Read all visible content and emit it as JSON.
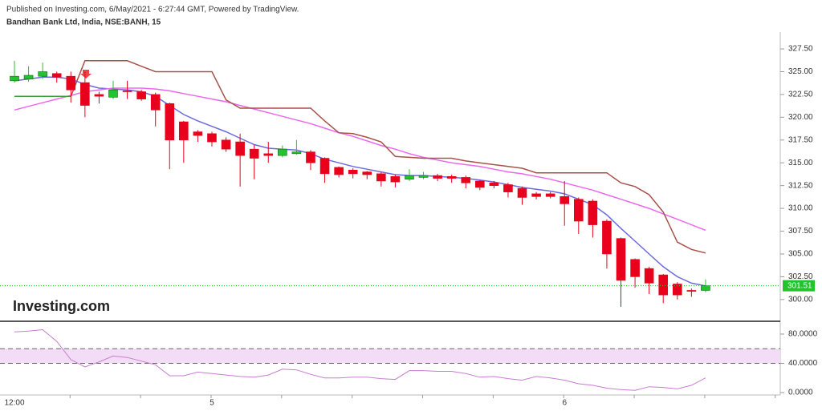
{
  "header": "Published on Investing.com, 6/May/2021 - 6:27:44 GMT, Powered by TradingView.",
  "logo": "Investing.com",
  "chart_data": [
    {
      "type": "candlestick",
      "title": "Bandhan Bank Ltd, India, NSE:BANH, 15",
      "categories": [
        "12:00",
        null,
        null,
        null,
        null,
        null,
        null,
        null,
        null,
        null,
        null,
        null,
        null,
        null,
        "5",
        null,
        null,
        null,
        null,
        null,
        null,
        null,
        null,
        null,
        null,
        null,
        null,
        null,
        null,
        null,
        null,
        null,
        null,
        null,
        null,
        null,
        null,
        null,
        null,
        "6",
        null,
        null,
        null,
        null,
        null,
        null,
        null,
        null,
        null,
        null
      ],
      "open": [
        324.0,
        324.2,
        324.5,
        324.8,
        324.5,
        323.8,
        322.5,
        322.2,
        322.9,
        322.8,
        322.5,
        321.5,
        319.5,
        318.4,
        318.2,
        317.5,
        317.3,
        316.5,
        316.0,
        315.8,
        316.0,
        316.2,
        315.5,
        314.5,
        314.2,
        314.0,
        313.8,
        313.5,
        313.2,
        313.4,
        313.6,
        313.5,
        313.4,
        313.0,
        312.8,
        312.6,
        312.2,
        311.6,
        311.6,
        311.3,
        311.0,
        310.8,
        308.6,
        306.7,
        304.4,
        303.4,
        302.7,
        301.7,
        301.0,
        301.0
      ],
      "high": [
        326.2,
        325.6,
        326.0,
        325.0,
        325.0,
        325.0,
        322.8,
        324.0,
        324.0,
        323.0,
        322.7,
        321.6,
        319.6,
        318.6,
        318.4,
        317.8,
        318.2,
        317.0,
        317.3,
        316.9,
        317.5,
        316.4,
        315.6,
        314.6,
        314.4,
        314.1,
        314.0,
        313.7,
        314.3,
        314.0,
        313.8,
        313.7,
        313.6,
        313.1,
        313.0,
        312.8,
        312.4,
        311.8,
        311.8,
        313.0,
        311.2,
        311.0,
        308.8,
        306.8,
        304.5,
        303.6,
        302.8,
        301.9,
        301.2,
        302.2
      ],
      "low": [
        323.8,
        323.9,
        324.2,
        323.8,
        321.6,
        320.0,
        321.5,
        322.0,
        322.0,
        321.8,
        319.0,
        314.3,
        315.0,
        317.3,
        316.8,
        316.2,
        312.4,
        313.2,
        315.0,
        315.6,
        315.9,
        314.2,
        312.8,
        313.4,
        313.3,
        313.2,
        312.4,
        312.3,
        313.0,
        313.2,
        313.0,
        312.8,
        312.2,
        312.0,
        312.2,
        311.2,
        310.4,
        311.0,
        311.1,
        308.1,
        307.2,
        306.8,
        303.4,
        299.2,
        301.3,
        300.6,
        299.6,
        300.0,
        300.3,
        300.8
      ],
      "close": [
        324.5,
        324.6,
        325.0,
        324.4,
        323.0,
        321.3,
        322.3,
        323.0,
        322.8,
        322.0,
        320.8,
        317.5,
        317.5,
        318.0,
        317.3,
        316.5,
        315.8,
        315.5,
        315.8,
        316.5,
        316.2,
        315.0,
        313.8,
        313.7,
        313.8,
        313.7,
        313.0,
        312.9,
        313.6,
        313.6,
        313.3,
        313.3,
        312.8,
        312.3,
        312.5,
        311.8,
        311.2,
        311.3,
        311.3,
        310.5,
        308.6,
        308.2,
        305.0,
        302.1,
        302.5,
        301.8,
        300.5,
        300.5,
        300.9,
        301.51
      ],
      "up_color": "#22c32e",
      "down_color": "#e8001c",
      "series": [
        {
          "color": "#6a6ae0",
          "values": [
            324.0,
            324.2,
            324.4,
            324.4,
            324.2,
            323.6,
            323.2,
            323.1,
            323.0,
            322.8,
            322.3,
            321.3,
            320.3,
            319.6,
            319.0,
            318.4,
            317.7,
            317.0,
            316.6,
            316.5,
            316.4,
            316.0,
            315.4,
            315.0,
            314.6,
            314.3,
            314.0,
            313.7,
            313.6,
            313.6,
            313.5,
            313.4,
            313.3,
            313.1,
            312.9,
            312.6,
            312.3,
            312.1,
            311.9,
            311.6,
            311.0,
            310.4,
            309.3,
            307.8,
            306.4,
            305.0,
            303.6,
            302.5,
            301.8,
            301.5
          ]
        },
        {
          "color": "#ee66ee",
          "values": [
            320.8,
            321.2,
            321.6,
            322.0,
            322.4,
            322.8,
            323.0,
            323.2,
            323.2,
            323.2,
            323.1,
            322.9,
            322.6,
            322.3,
            322.0,
            321.7,
            321.3,
            320.9,
            320.5,
            320.1,
            319.7,
            319.3,
            318.8,
            318.3,
            317.9,
            317.4,
            316.9,
            316.5,
            316.0,
            315.6,
            315.3,
            315.0,
            314.8,
            314.6,
            314.3,
            314.0,
            313.8,
            313.5,
            313.2,
            312.8,
            312.4,
            312.0,
            311.5,
            311.0,
            310.5,
            310.0,
            309.4,
            308.8,
            308.2,
            307.6
          ]
        },
        {
          "color": "#a5524a",
          "values": [
            null,
            null,
            null,
            null,
            322.3,
            326.2,
            326.2,
            326.2,
            326.2,
            325.6,
            325.0,
            325.0,
            325.0,
            325.0,
            325.0,
            321.9,
            321.0,
            321.0,
            321.0,
            321.0,
            321.0,
            321.0,
            319.6,
            318.3,
            318.2,
            317.8,
            317.3,
            315.7,
            315.6,
            315.5,
            315.5,
            315.5,
            315.2,
            315.0,
            314.8,
            314.6,
            314.4,
            313.9,
            313.9,
            313.9,
            313.9,
            313.9,
            313.9,
            312.8,
            312.4,
            311.5,
            309.6,
            306.3,
            305.5,
            305.1
          ]
        },
        {
          "color": "#3c9c3c",
          "values": [
            322.3,
            322.3,
            322.3,
            322.3,
            322.3,
            null,
            null,
            null,
            null,
            null,
            null,
            null,
            null,
            null,
            null,
            null,
            null,
            null,
            null,
            null,
            null,
            null,
            null,
            null,
            null,
            null,
            null,
            null,
            null,
            null,
            null,
            null,
            null,
            null,
            null,
            null,
            null,
            null,
            null,
            null,
            null,
            null,
            null,
            null,
            null,
            null,
            null,
            null,
            null,
            null
          ]
        }
      ],
      "last_price": 301.51,
      "last_price_label": "301.51",
      "ylim": [
        297.7,
        329.35
      ],
      "yticks": [
        {
          "value": 300,
          "label": "300.00"
        },
        {
          "value": 302.5,
          "label": "302.50"
        },
        {
          "value": 305,
          "label": "305.00"
        },
        {
          "value": 307.5,
          "label": "307.50"
        },
        {
          "value": 310,
          "label": "310.00"
        },
        {
          "value": 312.5,
          "label": "312.50"
        },
        {
          "value": 315,
          "label": "315.00"
        },
        {
          "value": 317.5,
          "label": "317.50"
        },
        {
          "value": 320,
          "label": "320.00"
        },
        {
          "value": 322.5,
          "label": "322.50"
        },
        {
          "value": 325,
          "label": "325.00"
        },
        {
          "value": 327.5,
          "label": "327.50"
        }
      ],
      "grid": false
    },
    {
      "type": "line",
      "series": [
        {
          "color": "#c77dd0",
          "values": [
            83,
            84,
            86,
            70,
            45,
            35,
            42,
            50,
            48,
            43,
            38,
            23,
            23,
            28,
            26,
            24,
            22,
            21,
            24,
            32,
            31,
            25,
            20,
            20,
            21,
            21,
            19,
            18,
            30,
            30,
            29,
            29,
            26,
            21,
            22,
            19,
            17,
            22,
            20,
            17,
            12,
            10,
            6,
            4,
            3,
            8,
            7,
            5,
            10,
            20
          ]
        }
      ],
      "band": [
        40,
        60
      ],
      "band_color": "#f3dcf5",
      "ylim": [
        -3.3,
        96.4
      ],
      "yticks": [
        {
          "value": 0,
          "label": "0.0000"
        },
        {
          "value": 40,
          "label": "40.0000"
        },
        {
          "value": 80,
          "label": "80.0000"
        }
      ],
      "grid": false
    }
  ]
}
